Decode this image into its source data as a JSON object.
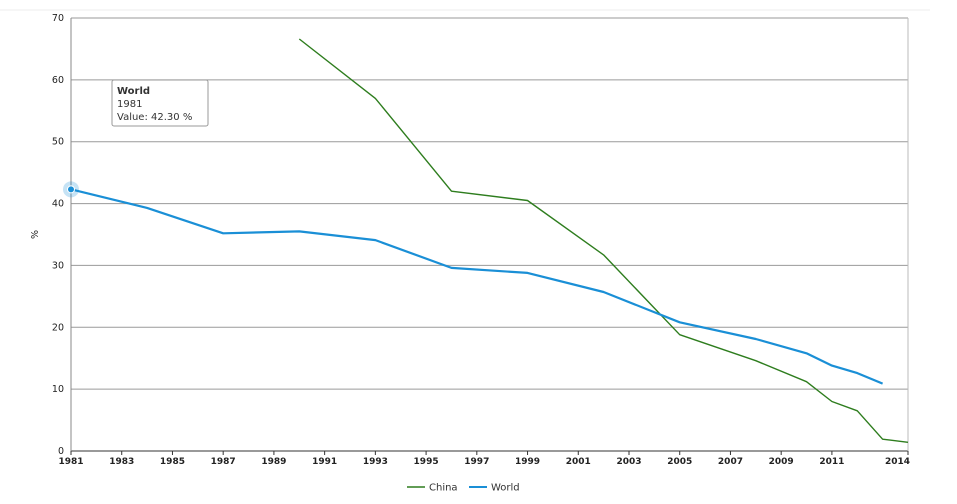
{
  "chart_data": {
    "type": "line",
    "title": "",
    "xlabel": "",
    "ylabel": "%",
    "xlim": [
      1981,
      2014
    ],
    "ylim": [
      0,
      70
    ],
    "x_ticks": [
      "1981",
      "1983",
      "1985",
      "1987",
      "1989",
      "1991",
      "1993",
      "1995",
      "1997",
      "1999",
      "2001",
      "2003",
      "2005",
      "2007",
      "2009",
      "2011",
      "2014"
    ],
    "y_ticks": [
      "0",
      "10",
      "20",
      "30",
      "40",
      "50",
      "60",
      "70"
    ],
    "grid": true,
    "legend_position": "bottom-center",
    "series": [
      {
        "name": "China",
        "color": "#2e7d1e",
        "x": [
          1990,
          1993,
          1996,
          1999,
          2002,
          2005,
          2008,
          2010,
          2011,
          2012,
          2013,
          2014
        ],
        "values": [
          66.6,
          57.0,
          42.0,
          40.5,
          31.7,
          18.8,
          14.6,
          11.2,
          8.0,
          6.5,
          1.9,
          1.4
        ]
      },
      {
        "name": "World",
        "color": "#1a8fd6",
        "x": [
          1981,
          1984,
          1987,
          1990,
          1993,
          1996,
          1999,
          2002,
          2005,
          2008,
          2010,
          2011,
          2012,
          2013
        ],
        "values": [
          42.3,
          39.3,
          35.2,
          35.5,
          34.1,
          29.6,
          28.8,
          25.7,
          20.8,
          18.1,
          15.8,
          13.8,
          12.6,
          10.9
        ]
      }
    ],
    "tooltip": {
      "series": "World",
      "year": "1981",
      "value_text": "Value: 42.30 %"
    }
  }
}
